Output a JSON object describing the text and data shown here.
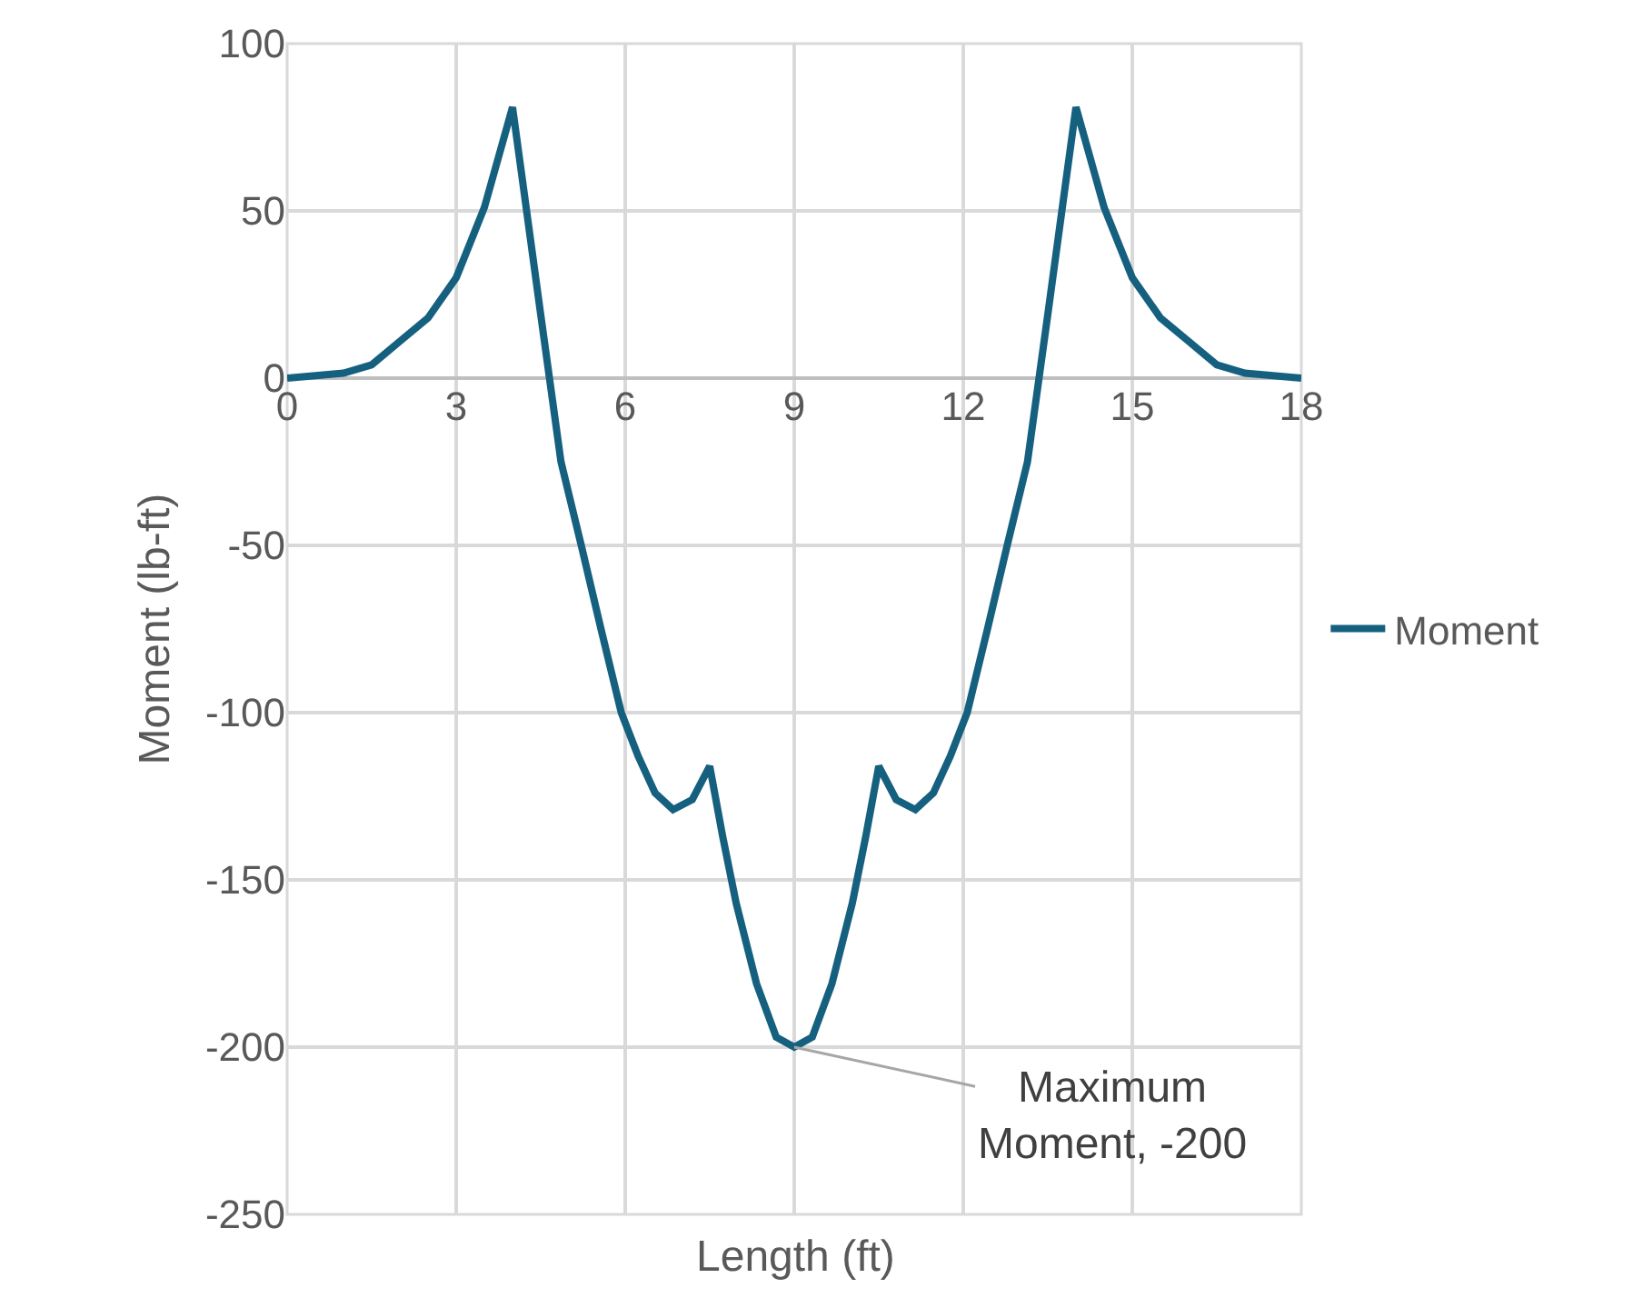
{
  "chart_data": {
    "type": "line",
    "xlabel": "Length (ft)",
    "ylabel": "Moment (lb-ft)",
    "x": [
      0,
      1,
      1.5,
      2,
      2.5,
      3,
      3.5,
      4,
      4.5,
      4.86,
      5.22,
      5.57,
      5.93,
      6.23,
      6.53,
      6.85,
      7.19,
      7.5,
      7.73,
      7.97,
      8.33,
      8.68,
      9,
      9.32,
      9.67,
      10.03,
      10.27,
      10.5,
      10.81,
      11.15,
      11.47,
      11.77,
      12.07,
      12.43,
      12.78,
      13.14,
      13.5,
      14,
      14.5,
      15,
      15.5,
      16,
      16.5,
      17,
      18
    ],
    "series": [
      {
        "name": "Moment",
        "color": "#16607f",
        "values": [
          0,
          1.5,
          4,
          11,
          18,
          30,
          51,
          81,
          19,
          -25,
          -50,
          -75,
          -100,
          -113,
          -124,
          -129,
          -126,
          -116,
          -137,
          -157,
          -181,
          -197,
          -200,
          -197,
          -181,
          -157,
          -137,
          -116,
          -126,
          -129,
          -124,
          -113,
          -100,
          -75,
          -50,
          -25,
          19,
          81,
          51,
          30,
          18,
          11,
          4,
          1.5,
          0
        ]
      }
    ],
    "xlim": [
      0,
      18
    ],
    "xticks": [
      0,
      3,
      6,
      9,
      12,
      15,
      18
    ],
    "ylim": [
      -250,
      100
    ],
    "yticks": [
      -250,
      -200,
      -150,
      -100,
      -50,
      0,
      50,
      100
    ],
    "grid": true,
    "legend": "right",
    "marker": "none",
    "line_style": "solid",
    "annotations": [
      {
        "text": "Maximum\nMoment, -200",
        "x": 9,
        "y": -200
      }
    ]
  }
}
